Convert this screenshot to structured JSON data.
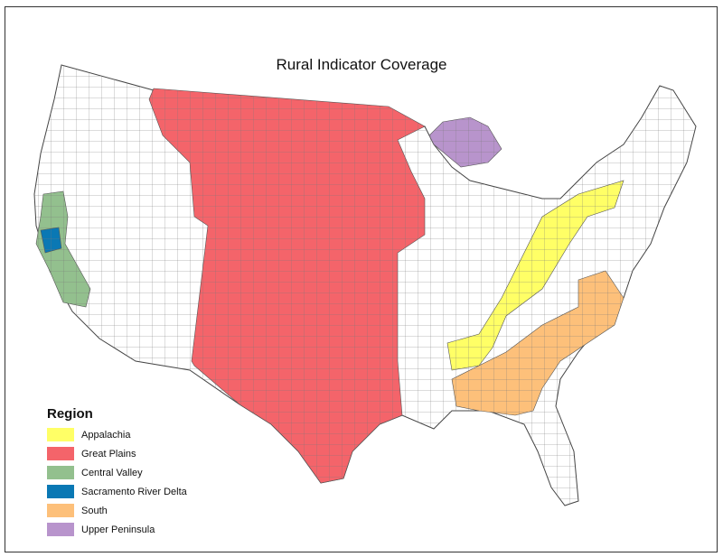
{
  "title": "Rural Indicator Coverage",
  "legend": {
    "title": "Region",
    "items": [
      {
        "label": "Appalachia",
        "color": "#ffff66"
      },
      {
        "label": "Great Plains",
        "color": "#f4646a"
      },
      {
        "label": "Central Valley",
        "color": "#93c08e"
      },
      {
        "label": "Sacramento River Delta",
        "color": "#0a78b4"
      },
      {
        "label": "South",
        "color": "#fdc07a"
      },
      {
        "label": "Upper Peninsula",
        "color": "#b894cc"
      }
    ]
  },
  "base_color": "#ffffff"
}
